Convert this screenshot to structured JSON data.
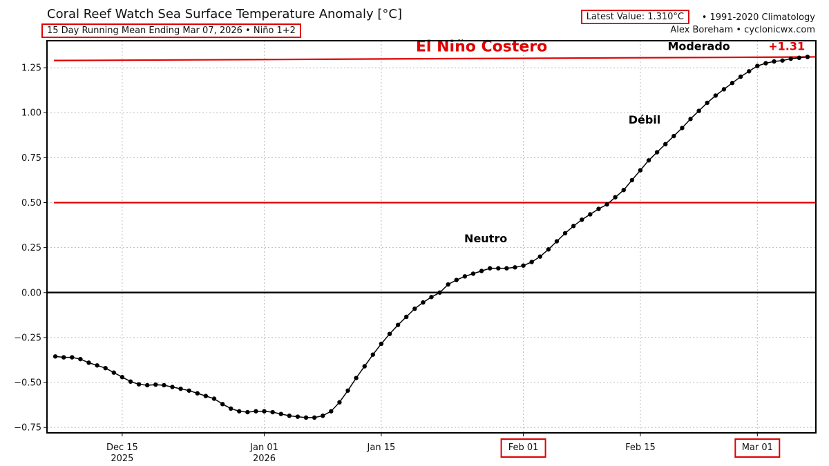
{
  "header": {
    "title": "Coral Reef Watch Sea Surface Temperature Anomaly [°C]",
    "subtitle": "15 Day Running Mean Ending Mar 07, 2026 • Niño 1+2",
    "latest_value": "Latest Value: 1.310°C",
    "climatology": "• 1991-2020 Climatology",
    "credit": "Alex Boreham • cyclonicwx.com"
  },
  "colors": {
    "line": "#000000",
    "threshold": "#e00000",
    "zero_line": "#000000",
    "grid": "#bbbbbb",
    "highlight_box": "#e00000"
  },
  "chart_data": {
    "type": "line",
    "title": "Coral Reef Watch Sea Surface Temperature Anomaly [°C]",
    "xlabel": "",
    "ylabel": "",
    "ylim": [
      -0.78,
      1.4
    ],
    "grid": true,
    "x_tick_labels": [
      {
        "day": 8,
        "label": "Dec 15",
        "sublabel": "2025",
        "boxed": false
      },
      {
        "day": 25,
        "label": "Jan 01",
        "sublabel": "2026",
        "boxed": false
      },
      {
        "day": 39,
        "label": "Jan 15",
        "sublabel": "",
        "boxed": false
      },
      {
        "day": 56,
        "label": "Feb 01",
        "sublabel": "",
        "boxed": true
      },
      {
        "day": 70,
        "label": "Feb 15",
        "sublabel": "",
        "boxed": false
      },
      {
        "day": 84,
        "label": "Mar 01",
        "sublabel": "",
        "boxed": true
      }
    ],
    "x_range_days": [
      -1,
      91
    ],
    "y_ticks": [
      -0.75,
      -0.5,
      -0.25,
      0.0,
      0.25,
      0.5,
      0.75,
      1.0,
      1.25
    ],
    "y_tick_labels": [
      "−0.75",
      "−0.50",
      "−0.25",
      "0.00",
      "0.25",
      "0.50",
      "0.75",
      "1.00",
      "1.25"
    ],
    "thresholds": [
      {
        "value": 0.5
      },
      {
        "value": 1.29,
        "value_end": 1.31
      }
    ],
    "zero_line": 0.0,
    "annotations": [
      {
        "text": "El Niño Costero",
        "day": 51,
        "y": 1.37,
        "color": "#e00000",
        "size": 22
      },
      {
        "text": "Moderado",
        "day": 77,
        "y": 1.37,
        "color": "#000000",
        "size": 16
      },
      {
        "text": "+1.31",
        "day": 87.5,
        "y": 1.37,
        "color": "#e00000",
        "size": 16
      },
      {
        "text": "Débil",
        "day": 70.5,
        "y": 0.96,
        "color": "#000000",
        "size": 16
      },
      {
        "text": "Neutro",
        "day": 51.5,
        "y": 0.3,
        "color": "#000000",
        "size": 16
      }
    ],
    "series": [
      {
        "x_days": [
          0,
          1,
          2,
          3,
          4,
          5,
          6,
          7,
          8,
          9,
          10,
          11,
          12,
          13,
          14,
          15,
          16,
          17,
          18,
          19,
          20,
          21,
          22,
          23,
          24,
          25,
          26,
          27,
          28,
          29,
          30,
          31,
          32,
          33,
          34,
          35,
          36,
          37,
          38,
          39,
          40,
          41,
          42,
          43,
          44,
          45,
          46,
          47,
          48,
          49,
          50,
          51,
          52,
          53,
          54,
          55,
          56,
          57,
          58,
          59,
          60,
          61,
          62,
          63,
          64,
          65,
          66,
          67,
          68,
          69,
          70,
          71,
          72,
          73,
          74,
          75,
          76,
          77,
          78,
          79,
          80,
          81,
          82,
          83,
          84,
          85,
          86,
          87,
          88,
          89,
          90
        ],
        "values": [
          -0.355,
          -0.36,
          -0.36,
          -0.37,
          -0.39,
          -0.405,
          -0.42,
          -0.445,
          -0.47,
          -0.495,
          -0.51,
          -0.515,
          -0.512,
          -0.515,
          -0.525,
          -0.535,
          -0.545,
          -0.56,
          -0.575,
          -0.59,
          -0.62,
          -0.645,
          -0.66,
          -0.665,
          -0.66,
          -0.66,
          -0.665,
          -0.675,
          -0.685,
          -0.69,
          -0.695,
          -0.695,
          -0.685,
          -0.66,
          -0.61,
          -0.545,
          -0.475,
          -0.41,
          -0.345,
          -0.285,
          -0.23,
          -0.18,
          -0.135,
          -0.09,
          -0.055,
          -0.025,
          0.0,
          0.045,
          0.07,
          0.09,
          0.105,
          0.12,
          0.135,
          0.135,
          0.135,
          0.14,
          0.15,
          0.17,
          0.2,
          0.24,
          0.285,
          0.33,
          0.37,
          0.405,
          0.435,
          0.465,
          0.49,
          0.53,
          0.57,
          0.625,
          0.68,
          0.735,
          0.78,
          0.825,
          0.87,
          0.915,
          0.965,
          1.01,
          1.055,
          1.095,
          1.13,
          1.165,
          1.2,
          1.23,
          1.26,
          1.275,
          1.285,
          1.29,
          1.3,
          1.305,
          1.31
        ]
      }
    ]
  }
}
